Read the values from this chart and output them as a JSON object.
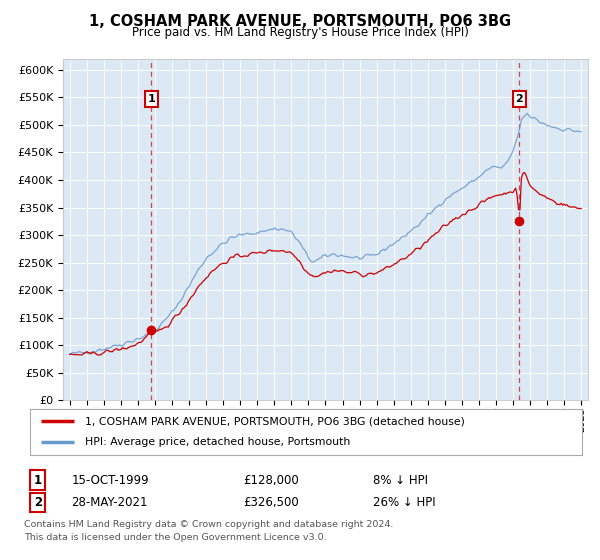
{
  "title": "1, COSHAM PARK AVENUE, PORTSMOUTH, PO6 3BG",
  "subtitle": "Price paid vs. HM Land Registry's House Price Index (HPI)",
  "bg_color": "#dde8f5",
  "ylabel_ticks": [
    "£0",
    "£50K",
    "£100K",
    "£150K",
    "£200K",
    "£250K",
    "£300K",
    "£350K",
    "£400K",
    "£450K",
    "£500K",
    "£550K",
    "£600K"
  ],
  "ytick_values": [
    0,
    50000,
    100000,
    150000,
    200000,
    250000,
    300000,
    350000,
    400000,
    450000,
    500000,
    550000,
    600000
  ],
  "ylim": [
    0,
    620000
  ],
  "sale1_price": 128000,
  "sale1_label": "1",
  "sale1_year": 1999.79,
  "sale2_price": 326500,
  "sale2_label": "2",
  "sale2_year": 2021.38,
  "legend_line1": "1, COSHAM PARK AVENUE, PORTSMOUTH, PO6 3BG (detached house)",
  "legend_line2": "HPI: Average price, detached house, Portsmouth",
  "footer": "Contains HM Land Registry data © Crown copyright and database right 2024.\nThis data is licensed under the Open Government Licence v3.0.",
  "red_line_color": "#cc0000",
  "blue_line_color": "#6699cc",
  "vline_color": "#cc0000"
}
